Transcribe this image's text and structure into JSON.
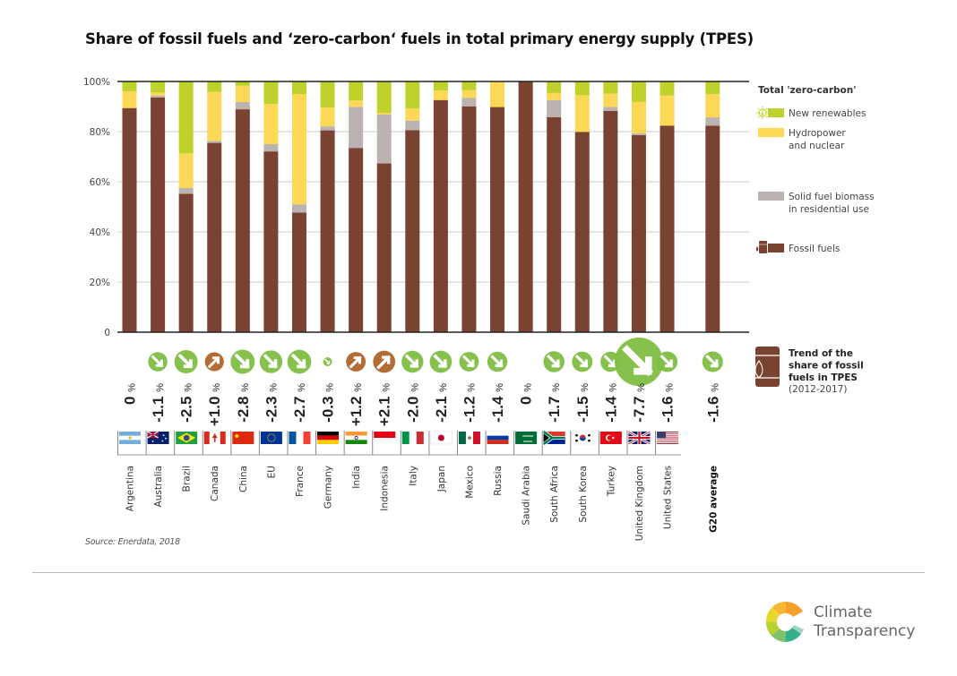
{
  "title": "Share of fossil fuels and ‘zero-carbon‘ fuels in total primary energy supply (TPES)",
  "source": "Source: Enerdata, 2018",
  "logo": {
    "line1": "Climate",
    "line2": "Transparency"
  },
  "colors": {
    "fossil": "#7a4230",
    "biomass": "#bab3b0",
    "hydro_nuclear": "#fcd856",
    "new_renewables": "#bfd22b",
    "trend_down": "#7fbe43",
    "trend_up": "#b0642c",
    "grid": "#c8c8c8",
    "axis": "#222222"
  },
  "legend": {
    "group_title": "Total 'zero-carbon'",
    "items": [
      {
        "key": "new_renewables",
        "label_lines": [
          "New renewables"
        ],
        "icon": "sun-lightning-icon"
      },
      {
        "key": "hydro_nuclear",
        "label_lines": [
          "Hydropower",
          "and nuclear"
        ],
        "icon": "none"
      },
      {
        "key": "biomass",
        "label_lines": [
          "Solid fuel biomass",
          "in residential use"
        ],
        "icon": "none"
      },
      {
        "key": "fossil",
        "label_lines": [
          "Fossil fuels"
        ],
        "icon": "oil-barrel-icon"
      }
    ],
    "trend": {
      "title_lines": [
        "Trend of the",
        "share of fossil",
        "fuels in TPES"
      ],
      "period": "(2012-2017)",
      "icon": "oil-barrel-drop-icon"
    }
  },
  "chart_data": {
    "type": "bar",
    "stacked": true,
    "title": "Share of fossil fuels and ‘zero-carbon‘ fuels in total primary energy supply (TPES)",
    "xlabel": "",
    "ylabel": "",
    "ylim": [
      0,
      100
    ],
    "yticks": [
      0,
      20,
      40,
      60,
      80,
      100
    ],
    "ytick_labels": [
      "0",
      "20%",
      "40%",
      "60%",
      "80%",
      "100%"
    ],
    "grid": true,
    "legend_position": "right",
    "categories": [
      "Argentina",
      "Australia",
      "Brazil",
      "Canada",
      "China",
      "EU",
      "France",
      "Germany",
      "India",
      "Indonesia",
      "Italy",
      "Japan",
      "Mexico",
      "Russia",
      "Saudi Arabia",
      "South Africa",
      "South Korea",
      "Turkey",
      "United Kingdom",
      "United States",
      "G20 average"
    ],
    "flags": [
      "argentina-flag",
      "australia-flag",
      "brazil-flag",
      "canada-flag",
      "china-flag",
      "eu-flag",
      "france-flag",
      "germany-flag",
      "india-flag",
      "indonesia-flag",
      "italy-flag",
      "japan-flag",
      "mexico-flag",
      "russia-flag",
      "saudi-arabia-flag",
      "south-africa-flag",
      "south-korea-flag",
      "turkey-flag",
      "united-kingdom-flag",
      "united-states-flag",
      ""
    ],
    "series": [
      {
        "name": "Fossil fuels",
        "key": "fossil",
        "values": [
          89.4,
          93.6,
          55.2,
          75.5,
          88.9,
          72.1,
          47.7,
          80.5,
          73.5,
          67.3,
          80.6,
          92.6,
          90.1,
          89.8,
          100,
          85.8,
          79.9,
          88.3,
          78.6,
          82.4,
          82.4
        ]
      },
      {
        "name": "Solid fuel biomass in residential use",
        "key": "biomass",
        "values": [
          0,
          0.8,
          2.3,
          0.8,
          2.9,
          2.9,
          3.3,
          1.6,
          16.4,
          19.6,
          3.8,
          0,
          3.3,
          0,
          0,
          6.8,
          0,
          1.5,
          0.7,
          0,
          3.3
        ]
      },
      {
        "name": "Hydropower and nuclear",
        "key": "hydro_nuclear",
        "values": [
          6.7,
          1.2,
          13.8,
          19.5,
          6.5,
          16.1,
          44.0,
          7.5,
          2.5,
          0.6,
          4.8,
          3.8,
          3.1,
          10.2,
          0,
          2.8,
          14.6,
          5.3,
          12.5,
          12.0,
          9.2
        ]
      },
      {
        "name": "New renewables",
        "key": "new_renewables",
        "values": [
          3.9,
          4.4,
          28.7,
          4.2,
          1.7,
          8.9,
          5.0,
          10.4,
          7.6,
          12.5,
          10.8,
          3.6,
          3.5,
          0,
          0,
          4.6,
          5.5,
          4.9,
          8.2,
          5.6,
          5.1
        ]
      }
    ],
    "trend": {
      "name": "Trend of the share of fossil fuels in TPES (2012-2017)",
      "values": [
        0,
        -1.1,
        -2.5,
        1.0,
        -2.8,
        -2.3,
        -2.7,
        -0.3,
        1.2,
        2.1,
        -2.0,
        -2.1,
        -1.2,
        -1.4,
        0,
        -1.7,
        -1.5,
        -1.4,
        -7.7,
        -1.6,
        -1.6
      ],
      "labels": [
        "0",
        "-1.1",
        "-2.5",
        "+1.0",
        "-2.8",
        "-2.3",
        "-2.7",
        "-0.3",
        "+1.2",
        "+2.1",
        "-2.0",
        "-2.1",
        "-1.2",
        "-1.4",
        "0",
        "-1.7",
        "-1.5",
        "-1.4",
        "-7.7",
        "-1.6",
        "-1.6"
      ],
      "unit": "%"
    }
  }
}
